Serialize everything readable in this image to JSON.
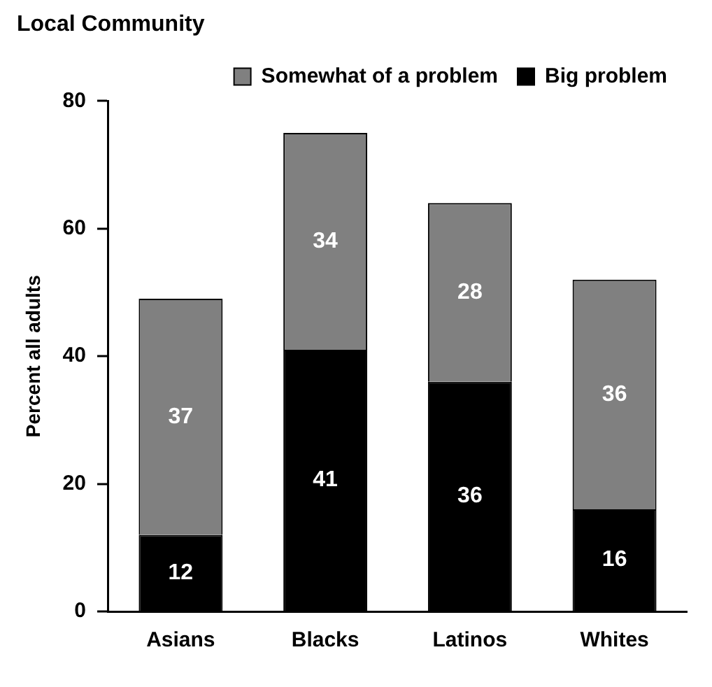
{
  "chart_data": {
    "type": "bar",
    "title": "Local Community",
    "ylabel": "Percent all adults",
    "categories": [
      "Asians",
      "Blacks",
      "Latinos",
      "Whites"
    ],
    "stacked": true,
    "series": [
      {
        "name": "Big problem",
        "color": "#000000",
        "values": [
          12,
          41,
          36,
          16
        ]
      },
      {
        "name": "Somewhat of a problem",
        "color": "#808080",
        "values": [
          37,
          34,
          28,
          36
        ]
      }
    ],
    "ylim": [
      0,
      80
    ],
    "yticks": [
      0,
      20,
      40,
      60,
      80
    ],
    "grid": false,
    "legend": "top right",
    "data_labels": true
  }
}
